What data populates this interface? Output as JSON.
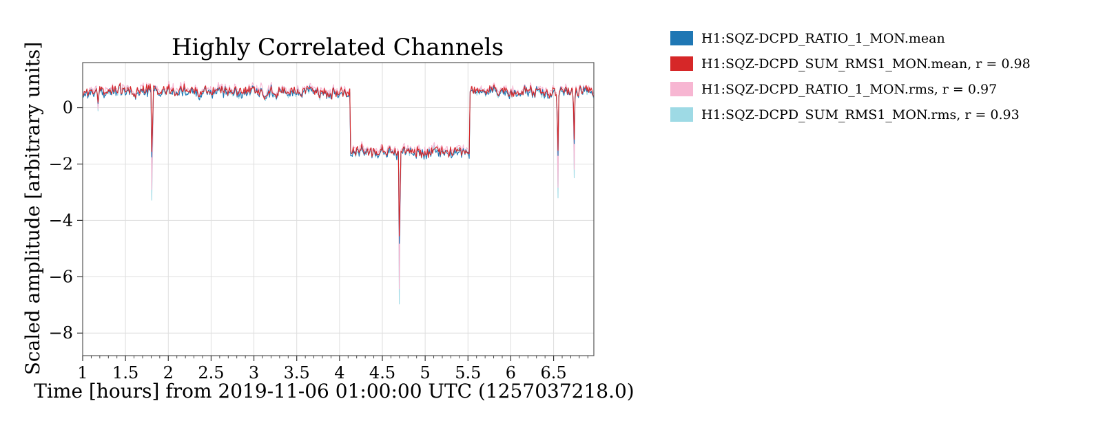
{
  "chart_data": {
    "type": "line",
    "title": "Highly Correlated Channels",
    "xlabel": "Time [hours] from 2019-11-06 01:00:00 UTC (1257037218.0)",
    "ylabel": "Scaled amplitude [arbitrary units]",
    "xlim": [
      1.0,
      6.97
    ],
    "ylim": [
      -8.8,
      1.6
    ],
    "xticks": [
      1,
      1.5,
      2,
      2.5,
      3,
      3.5,
      4,
      4.5,
      5,
      5.5,
      6,
      6.5
    ],
    "xtick_labels": [
      "1",
      "1.5",
      "2",
      "2.5",
      "3",
      "3.5",
      "4",
      "4.5",
      "5",
      "5.5",
      "6",
      "6.5"
    ],
    "yticks": [
      0,
      -2,
      -4,
      -6,
      -8
    ],
    "ytick_labels": [
      "0",
      "−2",
      "−4",
      "−6",
      "−8"
    ],
    "grid": true,
    "legend_position": "right-outside-top",
    "profile": {
      "segments": [
        {
          "x_start": 1.0,
          "x_end": 4.12,
          "level": 0.55
        },
        {
          "x_start": 4.12,
          "x_end": 5.52,
          "level": -1.6
        },
        {
          "x_start": 5.52,
          "x_end": 6.97,
          "level": 0.55
        }
      ],
      "spikes": [
        {
          "x": 1.18,
          "min": -0.15
        },
        {
          "x": 1.81,
          "min": -4.4
        },
        {
          "x": 4.7,
          "min": -8.3
        },
        {
          "x": 6.55,
          "min": -3.7
        },
        {
          "x": 6.74,
          "min": -2.7
        }
      ]
    },
    "series": [
      {
        "name": "H1:SQZ-DCPD_RATIO_1_MON.mean",
        "color": "#1f77b4",
        "offset": 0.0,
        "spike_scale": 0.6,
        "seed": 11
      },
      {
        "name": "H1:SQZ-DCPD_SUM_RMS1_MON.mean, r = 0.98",
        "color": "#d62728",
        "offset": 0.05,
        "spike_scale": 0.55,
        "seed": 23
      },
      {
        "name": "H1:SQZ-DCPD_RATIO_1_MON.rms, r = 0.97",
        "color": "#f7b6d2",
        "offset": 0.12,
        "spike_scale": 0.9,
        "seed": 37
      },
      {
        "name": "H1:SQZ-DCPD_SUM_RMS1_MON.rms, r = 0.93",
        "color": "#9edae5",
        "offset": 0.02,
        "spike_scale": 1.0,
        "seed": 53
      }
    ]
  }
}
